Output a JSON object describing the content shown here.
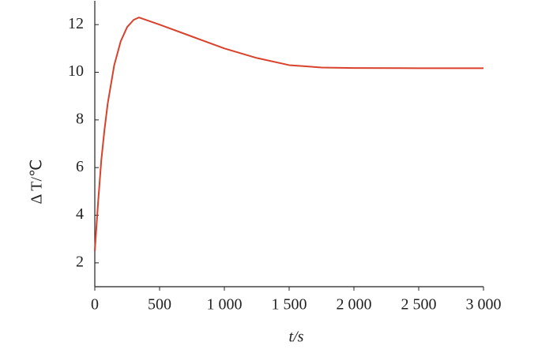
{
  "chart_data": {
    "type": "line",
    "x_label": "t/s",
    "y_label": "Δ T/℃",
    "x": [
      0,
      25,
      50,
      75,
      100,
      150,
      200,
      250,
      300,
      340,
      500,
      750,
      1000,
      1250,
      1500,
      1750,
      2000,
      2500,
      3000
    ],
    "series": [
      {
        "name": "ΔT",
        "color": "#d9412b",
        "values": [
          2.5,
          4.5,
          6.3,
          7.6,
          8.7,
          10.3,
          11.3,
          11.9,
          12.2,
          12.3,
          12.0,
          11.5,
          11.0,
          10.6,
          10.3,
          10.2,
          10.18,
          10.17,
          10.17
        ]
      }
    ],
    "xlim": [
      0,
      3000
    ],
    "xticks": [
      0,
      500,
      {
        "value": 1000,
        "label": "1 000"
      },
      {
        "value": 1500,
        "label": "1 500"
      },
      {
        "value": 2000,
        "label": "2 000"
      },
      {
        "value": 2500,
        "label": "2 500"
      },
      {
        "value": 3000,
        "label": "3 000"
      }
    ],
    "ylim": [
      1,
      13
    ],
    "yticks": [
      2,
      4,
      6,
      8,
      10,
      12
    ],
    "grid": false
  }
}
